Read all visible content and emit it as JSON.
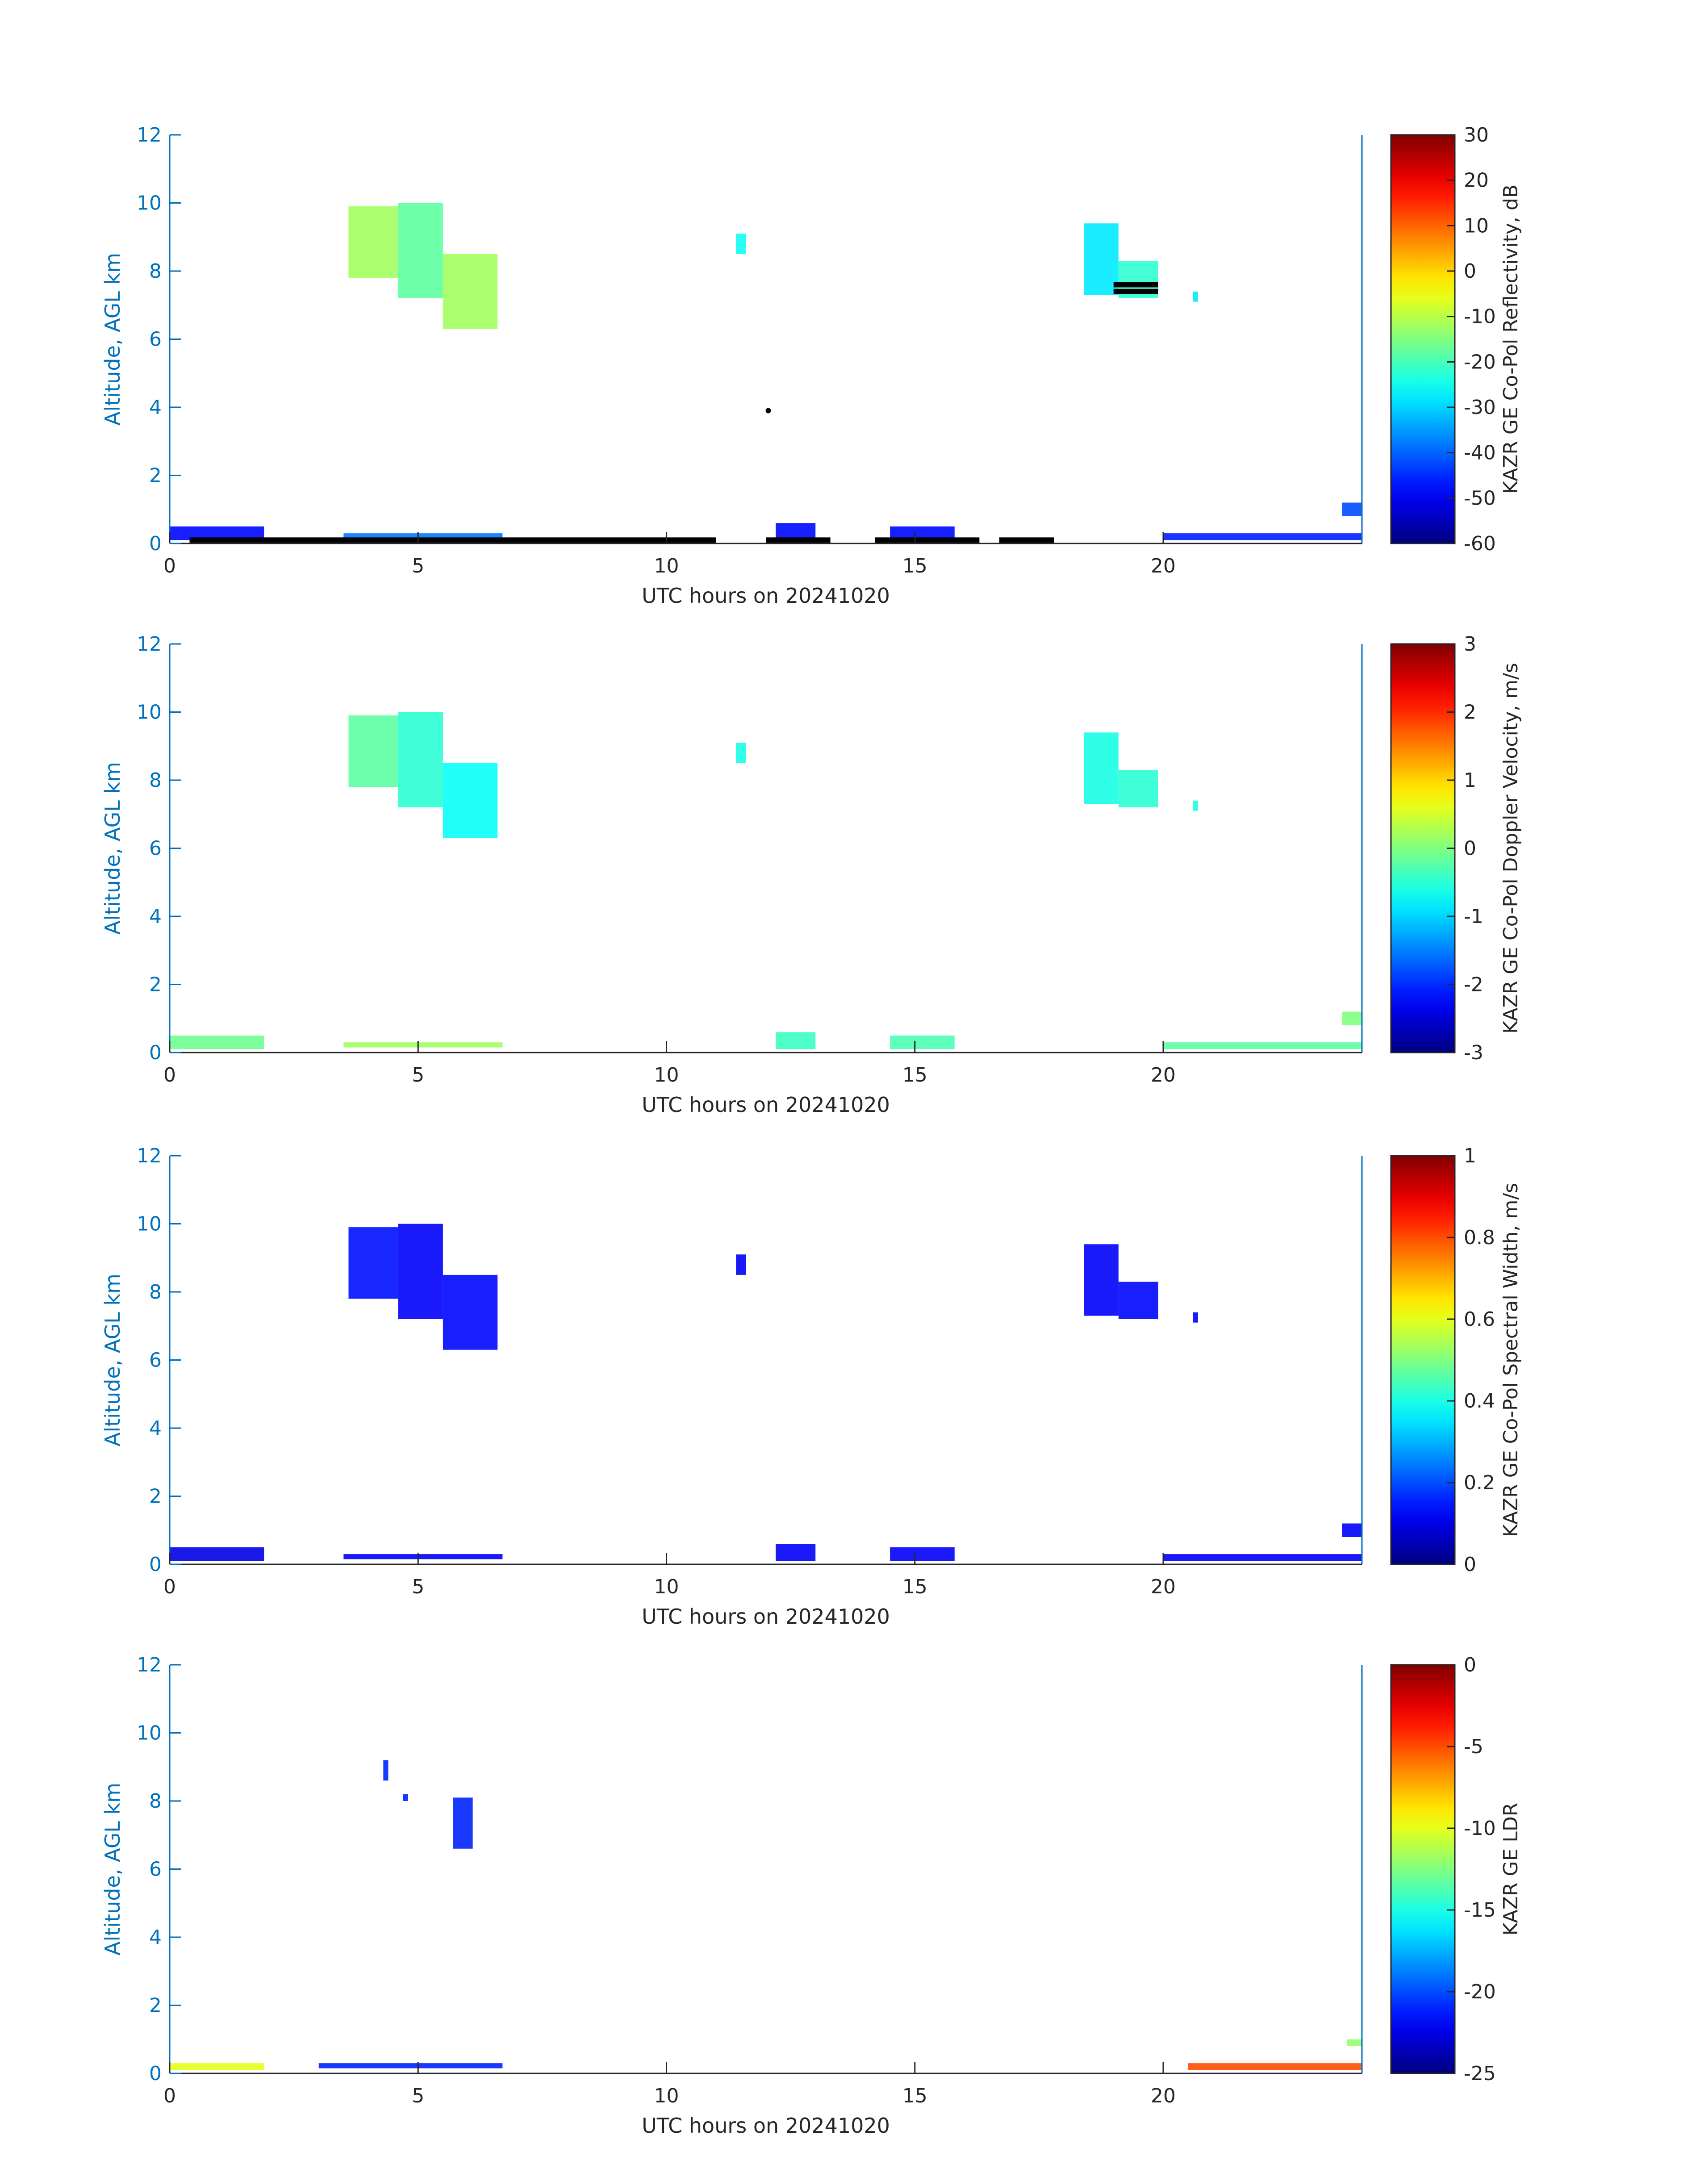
{
  "figure": {
    "shared_xlabel": "UTC hours on 20241020",
    "ylabel": "Altitude, AGL km",
    "axis_color": "#0072bd",
    "text_color": "#262626"
  },
  "chart_data": [
    {
      "type": "heatmap",
      "title": "",
      "xlabel": "UTC hours on 20241020",
      "ylabel": "Altitude, AGL km",
      "xlim": [
        0,
        24
      ],
      "ylim": [
        0,
        12
      ],
      "xticks": [
        0,
        5,
        10,
        15,
        20
      ],
      "yticks": [
        0,
        2,
        4,
        6,
        8,
        10,
        12
      ],
      "colorbar": {
        "label": "KAZR GE Co-Pol Reflectivity, dB",
        "range": [
          -60,
          30
        ],
        "ticks": [
          30,
          20,
          10,
          0,
          -10,
          -20,
          -30,
          -40,
          -50,
          -60
        ]
      },
      "regions": [
        {
          "x": [
            3.6,
            4.6
          ],
          "y": [
            7.8,
            9.9
          ],
          "value": -12
        },
        {
          "x": [
            4.6,
            5.5
          ],
          "y": [
            7.2,
            10.0
          ],
          "value": -18
        },
        {
          "x": [
            5.5,
            6.6
          ],
          "y": [
            6.3,
            8.5
          ],
          "value": -12
        },
        {
          "x": [
            11.4,
            11.6
          ],
          "y": [
            8.5,
            9.1
          ],
          "value": -25
        },
        {
          "x": [
            18.4,
            19.1
          ],
          "y": [
            7.3,
            9.4
          ],
          "value": -28
        },
        {
          "x": [
            19.1,
            19.9
          ],
          "y": [
            7.2,
            8.3
          ],
          "value": -22
        },
        {
          "x": [
            20.6,
            20.7
          ],
          "y": [
            7.1,
            7.4
          ],
          "value": -28
        },
        {
          "x": [
            0.0,
            1.9
          ],
          "y": [
            0.1,
            0.5
          ],
          "value": -48
        },
        {
          "x": [
            3.5,
            6.7
          ],
          "y": [
            0.15,
            0.3
          ],
          "value": -38
        },
        {
          "x": [
            12.2,
            13.0
          ],
          "y": [
            0.1,
            0.6
          ],
          "value": -48
        },
        {
          "x": [
            14.5,
            15.8
          ],
          "y": [
            0.1,
            0.5
          ],
          "value": -48
        },
        {
          "x": [
            20.0,
            24.0
          ],
          "y": [
            0.1,
            0.3
          ],
          "value": -46
        },
        {
          "x": [
            23.6,
            24.0
          ],
          "y": [
            0.8,
            1.2
          ],
          "value": -42
        }
      ],
      "overlay_points": [
        {
          "x": [
            0.4,
            11.0
          ],
          "y": 0.1
        },
        {
          "x": [
            12.0,
            13.3
          ],
          "y": 0.1
        },
        {
          "x": [
            14.2,
            16.3
          ],
          "y": 0.1
        },
        {
          "x": [
            16.7,
            17.8
          ],
          "y": 0.1
        },
        {
          "x": [
            12.05,
            12.05
          ],
          "y": 3.9
        },
        {
          "x": [
            19.0,
            19.9
          ],
          "y": 7.6
        },
        {
          "x": [
            19.0,
            19.9
          ],
          "y": 7.4
        }
      ]
    },
    {
      "type": "heatmap",
      "title": "",
      "xlabel": "UTC hours on 20241020",
      "ylabel": "Altitude, AGL km",
      "xlim": [
        0,
        24
      ],
      "ylim": [
        0,
        12
      ],
      "xticks": [
        0,
        5,
        10,
        15,
        20
      ],
      "yticks": [
        0,
        2,
        4,
        6,
        8,
        10,
        12
      ],
      "colorbar": {
        "label": "KAZR GE Co-Pol Doppler Velocity, m/s",
        "range": [
          -3,
          3
        ],
        "ticks": [
          3,
          2,
          1,
          0,
          -1,
          -2,
          -3
        ]
      },
      "regions": [
        {
          "x": [
            3.6,
            4.6
          ],
          "y": [
            7.8,
            9.9
          ],
          "value": -0.2
        },
        {
          "x": [
            4.6,
            5.5
          ],
          "y": [
            7.2,
            10.0
          ],
          "value": -0.5
        },
        {
          "x": [
            5.5,
            6.6
          ],
          "y": [
            6.3,
            8.5
          ],
          "value": -0.7
        },
        {
          "x": [
            11.4,
            11.6
          ],
          "y": [
            8.5,
            9.1
          ],
          "value": -0.6
        },
        {
          "x": [
            18.4,
            19.1
          ],
          "y": [
            7.3,
            9.4
          ],
          "value": -0.6
        },
        {
          "x": [
            19.1,
            19.9
          ],
          "y": [
            7.2,
            8.3
          ],
          "value": -0.5
        },
        {
          "x": [
            20.6,
            20.7
          ],
          "y": [
            7.1,
            7.4
          ],
          "value": -0.6
        },
        {
          "x": [
            0.0,
            1.9
          ],
          "y": [
            0.1,
            0.5
          ],
          "value": -0.1
        },
        {
          "x": [
            3.5,
            6.7
          ],
          "y": [
            0.15,
            0.3
          ],
          "value": 0.2
        },
        {
          "x": [
            12.2,
            13.0
          ],
          "y": [
            0.1,
            0.6
          ],
          "value": -0.4
        },
        {
          "x": [
            14.5,
            15.8
          ],
          "y": [
            0.1,
            0.5
          ],
          "value": -0.3
        },
        {
          "x": [
            20.0,
            24.0
          ],
          "y": [
            0.1,
            0.3
          ],
          "value": -0.2
        },
        {
          "x": [
            23.6,
            24.0
          ],
          "y": [
            0.8,
            1.2
          ],
          "value": 0.0
        }
      ],
      "overlay_points": []
    },
    {
      "type": "heatmap",
      "title": "",
      "xlabel": "UTC hours on 20241020",
      "ylabel": "Altitude, AGL km",
      "xlim": [
        0,
        24
      ],
      "ylim": [
        0,
        12
      ],
      "xticks": [
        0,
        5,
        10,
        15,
        20
      ],
      "yticks": [
        0,
        2,
        4,
        6,
        8,
        10,
        12
      ],
      "colorbar": {
        "label": "KAZR GE Co-Pol Spectral Width, m/s",
        "range": [
          0,
          1
        ],
        "ticks": [
          1,
          0.8,
          0.6,
          0.4,
          0.2,
          0
        ]
      },
      "regions": [
        {
          "x": [
            3.6,
            4.6
          ],
          "y": [
            7.8,
            9.9
          ],
          "value": 0.14
        },
        {
          "x": [
            4.6,
            5.5
          ],
          "y": [
            7.2,
            10.0
          ],
          "value": 0.12
        },
        {
          "x": [
            5.5,
            6.6
          ],
          "y": [
            6.3,
            8.5
          ],
          "value": 0.13
        },
        {
          "x": [
            11.4,
            11.6
          ],
          "y": [
            8.5,
            9.1
          ],
          "value": 0.12
        },
        {
          "x": [
            18.4,
            19.1
          ],
          "y": [
            7.3,
            9.4
          ],
          "value": 0.12
        },
        {
          "x": [
            19.1,
            19.9
          ],
          "y": [
            7.2,
            8.3
          ],
          "value": 0.13
        },
        {
          "x": [
            20.6,
            20.7
          ],
          "y": [
            7.1,
            7.4
          ],
          "value": 0.12
        },
        {
          "x": [
            0.0,
            1.9
          ],
          "y": [
            0.1,
            0.5
          ],
          "value": 0.1
        },
        {
          "x": [
            3.5,
            6.7
          ],
          "y": [
            0.15,
            0.3
          ],
          "value": 0.12
        },
        {
          "x": [
            12.2,
            13.0
          ],
          "y": [
            0.1,
            0.6
          ],
          "value": 0.12
        },
        {
          "x": [
            14.5,
            15.8
          ],
          "y": [
            0.1,
            0.5
          ],
          "value": 0.12
        },
        {
          "x": [
            20.0,
            24.0
          ],
          "y": [
            0.1,
            0.3
          ],
          "value": 0.12
        },
        {
          "x": [
            23.6,
            24.0
          ],
          "y": [
            0.8,
            1.2
          ],
          "value": 0.12
        }
      ],
      "overlay_points": []
    },
    {
      "type": "heatmap",
      "title": "",
      "xlabel": "UTC hours on 20241020",
      "ylabel": "Altitude, AGL km",
      "xlim": [
        0,
        24
      ],
      "ylim": [
        0,
        12
      ],
      "xticks": [
        0,
        5,
        10,
        15,
        20
      ],
      "yticks": [
        0,
        2,
        4,
        6,
        8,
        10,
        12
      ],
      "colorbar": {
        "label": "KAZR GE LDR",
        "range": [
          -25,
          0
        ],
        "ticks": [
          0,
          -5,
          -10,
          -15,
          -20,
          -25
        ]
      },
      "regions": [
        {
          "x": [
            4.3,
            4.4
          ],
          "y": [
            8.6,
            9.2
          ],
          "value": -21
        },
        {
          "x": [
            4.7,
            4.8
          ],
          "y": [
            8.0,
            8.2
          ],
          "value": -21
        },
        {
          "x": [
            5.7,
            6.1
          ],
          "y": [
            6.6,
            8.1
          ],
          "value": -21
        },
        {
          "x": [
            0.0,
            1.9
          ],
          "y": [
            0.1,
            0.3
          ],
          "value": -10
        },
        {
          "x": [
            3.0,
            6.7
          ],
          "y": [
            0.15,
            0.3
          ],
          "value": -21
        },
        {
          "x": [
            20.5,
            24.0
          ],
          "y": [
            0.1,
            0.3
          ],
          "value": -5
        },
        {
          "x": [
            23.7,
            24.0
          ],
          "y": [
            0.8,
            1.0
          ],
          "value": -12
        }
      ],
      "overlay_points": []
    }
  ]
}
